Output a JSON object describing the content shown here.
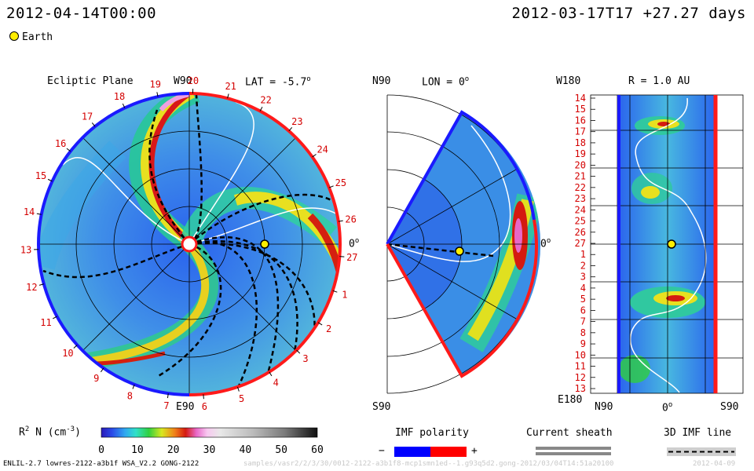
{
  "header": {
    "datetime": "2012-04-14T00:00",
    "reference": "2012-03-17T17 +27.27 days",
    "legend_marker": "Earth"
  },
  "colors": {
    "sheath_white": "#ffffff",
    "polarity_negative": "#0000ff",
    "polarity_positive": "#ff0000",
    "sheath_gray": "#888888",
    "imf_line": "#000000",
    "earth": "#ffee00"
  },
  "chart_data": [
    {
      "type": "heatmap",
      "panel": "ecliptic",
      "title": "Ecliptic Plane",
      "lat_label": "LAT = -5.7",
      "lat_unit": "o",
      "top_label": "W90",
      "bottom_label": "E90",
      "right_label": "0",
      "right_unit": "o",
      "carrington_ticks": [
        "19",
        "20",
        "21",
        "22",
        "23",
        "24",
        "25",
        "26",
        "27",
        "1",
        "2",
        "3",
        "4",
        "5",
        "6",
        "7",
        "8",
        "9",
        "10",
        "11",
        "12",
        "13",
        "14",
        "15",
        "16",
        "17",
        "18"
      ]
    },
    {
      "type": "heatmap",
      "panel": "meridional",
      "title": "LON = 0",
      "title_unit": "o",
      "top_label": "N90",
      "bottom_label": "S90",
      "right_label": "0",
      "right_unit": "o"
    },
    {
      "type": "heatmap",
      "panel": "radial",
      "title": "R = 1.0 AU",
      "top_label": "W180",
      "bottom_label": "E180",
      "x_labels": [
        "N90",
        "0",
        "S90"
      ],
      "x_unit": "o",
      "y_labels": [
        "14",
        "15",
        "16",
        "17",
        "18",
        "19",
        "20",
        "21",
        "22",
        "23",
        "24",
        "25",
        "26",
        "27",
        "1",
        "2",
        "3",
        "4",
        "5",
        "6",
        "7",
        "8",
        "9",
        "10",
        "11",
        "12",
        "13"
      ]
    }
  ],
  "colorbar": {
    "label": "R N (cm )",
    "label_sup1": "2",
    "label_sup2": "-3",
    "min": 0,
    "max": 60,
    "ticks": [
      "0",
      "10",
      "20",
      "30",
      "40",
      "50",
      "60"
    ]
  },
  "legends": {
    "polarity_title": "IMF polarity",
    "polarity_neg": "−",
    "polarity_pos": "+",
    "sheath_title": "Current sheath",
    "imf_title": "3D IMF line"
  },
  "footer": {
    "model": "ENLIL-2.7 lowres-2122-a3b1f WSA_V2.2 GONG-2122",
    "path": "samples/vasr2/2/3/30/0012-2122-a3b1f8-mcp1smn1ed--1.g93q5d2.gong-2012/03/04T14:51a20100",
    "stamp": "2012-04-09"
  }
}
